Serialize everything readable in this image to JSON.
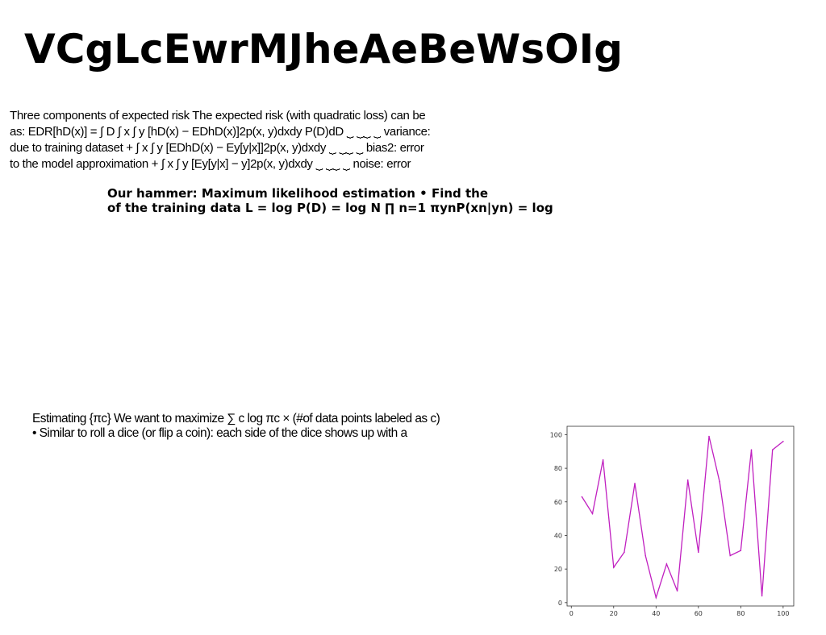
{
  "title": "VCgLcEwrMJheAeBeWsOIg",
  "paragraphs": {
    "risk": "Three components of expected risk The expected risk (with quadratic loss) can be\nas: EDR[hD(x)] = ∫ D ∫ x ∫ y [hD(x) − EDhD(x)]2p(x, y)dxdy P(D)dD ⏟ ⏟⏟ ⏟ variance:\ndue to training dataset + ∫ x ∫ y [EDhD(x) − Ey[y|x]]2p(x, y)dxdy ⏟ ⏟⏟ ⏟ bias2: error\nto the model approximation + ∫ x ∫ y [Ey[y|x] − y]2p(x, y)dxdy ⏟ ⏟⏟ ⏟ noise: error",
    "hammer": "Our hammer: Maximum likelihood estimation • Find the\nof the training data L = log P(D) = log N ∏ n=1 πynP(xn|yn) = log",
    "estimate": "Estimating {πc} We want to maximize ∑ c log πc × (#of data points labeled as c)\n• Similar to roll a dice (or flip a coin): each side of the dice shows up with a"
  },
  "chart_data": {
    "type": "line",
    "x": [
      5,
      10,
      15,
      20,
      25,
      30,
      35,
      40,
      45,
      50,
      55,
      60,
      65,
      70,
      75,
      80,
      85,
      90,
      95,
      100
    ],
    "series": [
      {
        "values": [
          63,
          53,
          85,
          21,
          30,
          71,
          28,
          3,
          23,
          7,
          73,
          30,
          99,
          72,
          28,
          31,
          91,
          4,
          91,
          96
        ],
        "color": "#c020c0"
      }
    ],
    "xlim": [
      -2,
      105
    ],
    "ylim": [
      -2,
      105
    ],
    "xticks": [
      "0",
      "20",
      "40",
      "60",
      "80",
      "100"
    ],
    "yticks": [
      "0",
      "20",
      "40",
      "60",
      "80",
      "100"
    ],
    "grid": false,
    "title": "",
    "xlabel": "",
    "ylabel": ""
  }
}
